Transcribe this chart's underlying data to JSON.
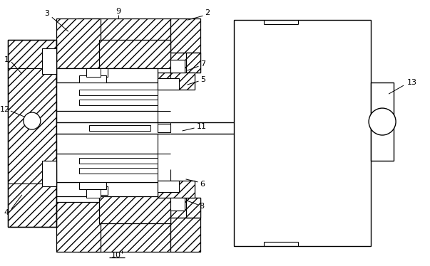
{
  "bg": "#ffffff",
  "lc": "#000000",
  "lw": 0.8,
  "fig_w": 6.03,
  "fig_h": 3.74,
  "dpi": 100
}
